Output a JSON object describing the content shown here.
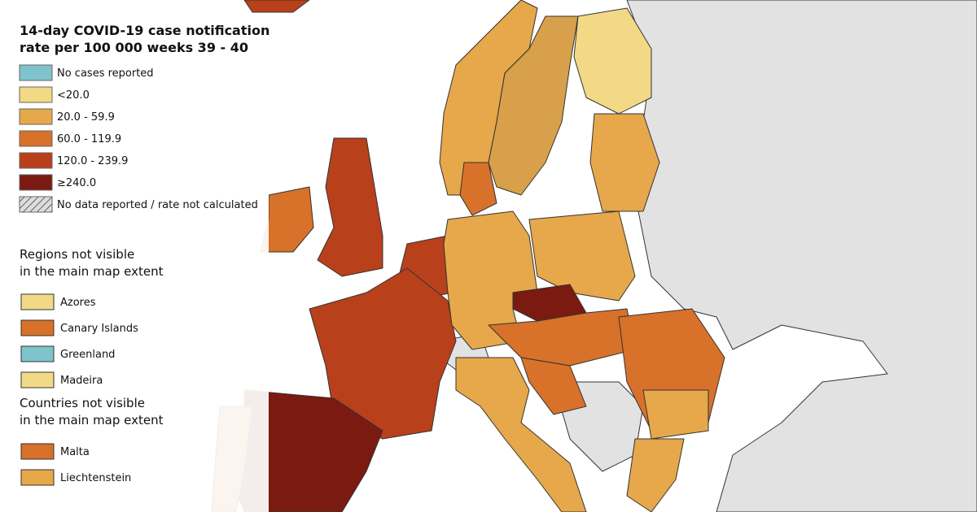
{
  "title": [
    "14-day COVID-19 case notification",
    "rate per 100 000 weeks 39 - 40"
  ],
  "legend": [
    {
      "label": "No cases reported",
      "color": "#7fc3cc"
    },
    {
      "label": "<20.0",
      "color": "#f2d985"
    },
    {
      "label": "20.0 - 59.9",
      "color": "#e6a84a"
    },
    {
      "label": "60.0 - 119.9",
      "color": "#d8712a"
    },
    {
      "label": "120.0 - 239.9",
      "color": "#b8401b"
    },
    {
      "label": "≥240.0",
      "color": "#7a1a10"
    },
    {
      "label": "No data reported / rate not calculated",
      "color": "hatch"
    }
  ],
  "regions_heading": [
    "Regions not visible",
    "in the main map extent"
  ],
  "regions": [
    {
      "label": "Azores",
      "color": "#f2d985"
    },
    {
      "label": "Canary Islands",
      "color": "#d8712a"
    },
    {
      "label": "Greenland",
      "color": "#7fc3cc"
    },
    {
      "label": "Madeira",
      "color": "#f2d985"
    }
  ],
  "countries_heading": [
    "Countries not visible",
    "in the main map extent"
  ],
  "countries": [
    {
      "label": "Malta",
      "color": "#d8712a"
    },
    {
      "label": "Liechtenstein",
      "color": "#e6a84a"
    }
  ]
}
